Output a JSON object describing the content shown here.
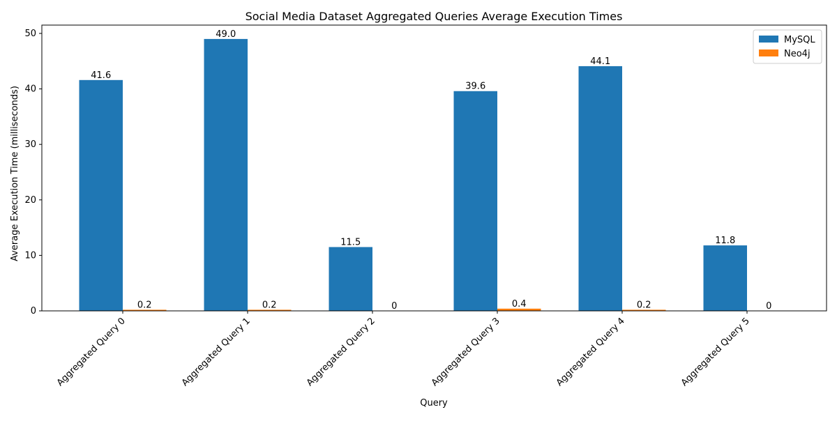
{
  "chart_data": {
    "type": "bar",
    "title": "Social Media Dataset Aggregated Queries Average Execution Times",
    "xlabel": "Query",
    "ylabel": "Average Execution Time (milliseconds)",
    "categories": [
      "Aggregated Query 0",
      "Aggregated Query 1",
      "Aggregated Query 2",
      "Aggregated Query 3",
      "Aggregated Query 4",
      "Aggregated Query 5"
    ],
    "series": [
      {
        "name": "MySQL",
        "color": "#1f77b4",
        "values": [
          41.6,
          49.0,
          11.5,
          39.6,
          44.1,
          11.8
        ],
        "labels": [
          "41.6",
          "49.0",
          "11.5",
          "39.6",
          "44.1",
          "11.8"
        ]
      },
      {
        "name": "Neo4j",
        "color": "#ff7f0e",
        "values": [
          0.2,
          0.2,
          0,
          0.4,
          0.2,
          0
        ],
        "labels": [
          "0.2",
          "0.2",
          "0",
          "0.4",
          "0.2",
          "0"
        ]
      }
    ],
    "ylim": [
      0,
      51.5
    ],
    "yticks": [
      0,
      10,
      20,
      30,
      40,
      50
    ],
    "grid": false,
    "legend_position": "top-right"
  }
}
